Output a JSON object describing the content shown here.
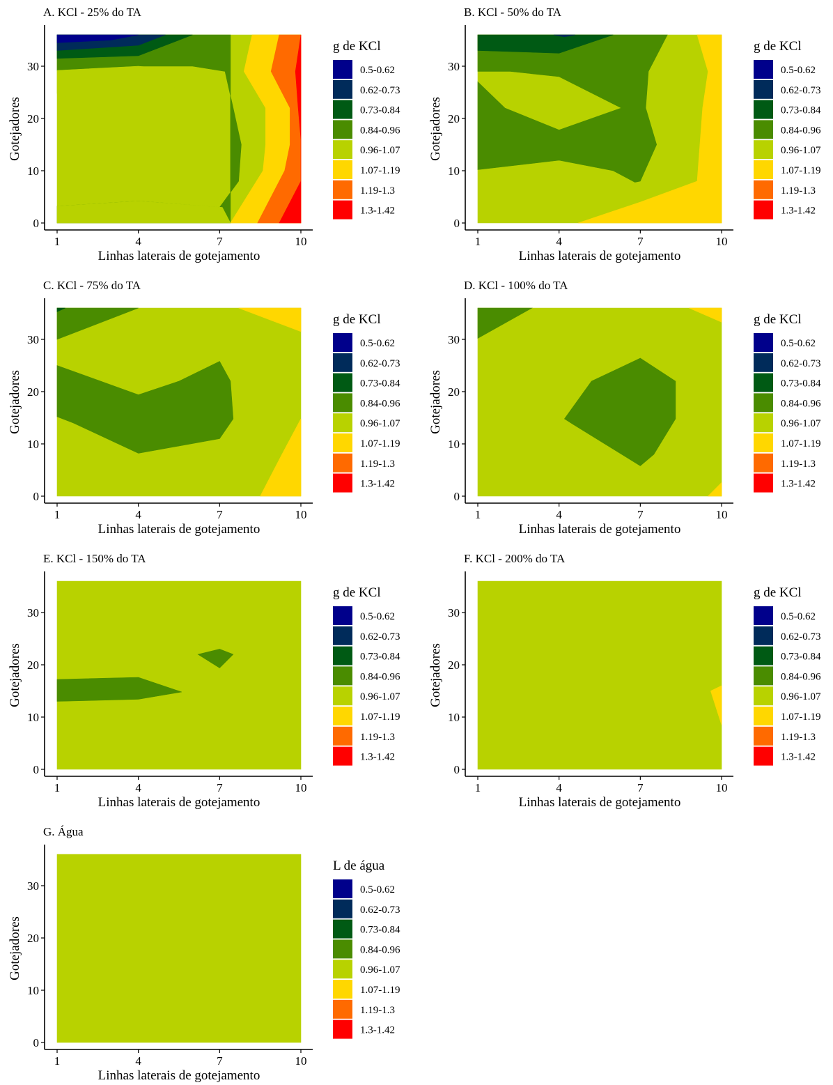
{
  "legend_palette": [
    "#00008B",
    "#002B5A",
    "#005A14",
    "#4A8C00",
    "#B8D200",
    "#FFD700",
    "#FF6A00",
    "#FF0000"
  ],
  "chart_data": [
    {
      "type": "heatmap",
      "title": "A.  KCl - 25% do TA",
      "xlabel": "Linhas laterais de gotejamento",
      "ylabel": "Gotejadores",
      "x_ticks": [
        "1",
        "4",
        "7",
        "10"
      ],
      "y_ticks": [
        "0",
        "10",
        "20",
        "30"
      ],
      "xlim": [
        1,
        10
      ],
      "ylim": [
        0,
        36
      ],
      "legend_title": "g de KCl",
      "legend_labels": [
        "0.5-0.62",
        "0.62-0.73",
        "0.73-0.84",
        "0.84-0.96",
        "0.96-1.07",
        "1.07-1.19",
        "1.19-1.3",
        "1.3-1.42"
      ],
      "regions": [
        {
          "level": 4,
          "points": [
            [
              1,
              0
            ],
            [
              10,
              0
            ],
            [
              10,
              36
            ],
            [
              1,
              36
            ]
          ]
        },
        {
          "level": 5,
          "points": [
            [
              7.4,
              0
            ],
            [
              10,
              0
            ],
            [
              10,
              36
            ],
            [
              8.2,
              36
            ],
            [
              7.9,
              29
            ],
            [
              8.7,
              22
            ],
            [
              8.7,
              15
            ],
            [
              8.6,
              10
            ]
          ]
        },
        {
          "level": 6,
          "points": [
            [
              8.4,
              0
            ],
            [
              10,
              0
            ],
            [
              10,
              36
            ],
            [
              9.2,
              36
            ],
            [
              8.9,
              29
            ],
            [
              9.6,
              22
            ],
            [
              9.6,
              15
            ],
            [
              9.4,
              10
            ]
          ]
        },
        {
          "level": 7,
          "points": [
            [
              9.2,
              0
            ],
            [
              10,
              0
            ],
            [
              10,
              36
            ],
            [
              10,
              36
            ],
            [
              9.8,
              29
            ],
            [
              9.9,
              22
            ],
            [
              10,
              16
            ],
            [
              10,
              8
            ]
          ]
        },
        {
          "level": 3,
          "points": [
            [
              1,
              3.2
            ],
            [
              4,
              4.2
            ],
            [
              7,
              3
            ],
            [
              7.7,
              8
            ],
            [
              7.8,
              15
            ],
            [
              7.5,
              22
            ],
            [
              7.2,
              29
            ],
            [
              6,
              30
            ],
            [
              4,
              30
            ],
            [
              1,
              29.2
            ],
            [
              1,
              36
            ],
            [
              7,
              36
            ],
            [
              7.4,
              36
            ],
            [
              7.4,
              0
            ],
            [
              1,
              0
            ]
          ]
        },
        {
          "level": 4,
          "points": [
            [
              1,
              0
            ],
            [
              7.4,
              0
            ],
            [
              7.1,
              3
            ],
            [
              4,
              4.2
            ],
            [
              1,
              3.2
            ]
          ]
        },
        {
          "level": 4,
          "points": [
            [
              1,
              29.2
            ],
            [
              4,
              30
            ],
            [
              6,
              29
            ],
            [
              4,
              20
            ],
            [
              2.5,
              22
            ],
            [
              1,
              24.8
            ]
          ]
        },
        {
          "level": 2,
          "points": [
            [
              1,
              31.5
            ],
            [
              4,
              32
            ],
            [
              6,
              36
            ],
            [
              1,
              36
            ]
          ]
        },
        {
          "level": 1,
          "points": [
            [
              1,
              33
            ],
            [
              4,
              34
            ],
            [
              5,
              36
            ],
            [
              1,
              36
            ]
          ]
        },
        {
          "level": 0,
          "points": [
            [
              1,
              34.5
            ],
            [
              3,
              35
            ],
            [
              4,
              36
            ],
            [
              1,
              36
            ]
          ]
        }
      ]
    },
    {
      "type": "heatmap",
      "title": "B.  KCl - 50% do TA",
      "xlabel": "Linhas laterais de gotejamento",
      "ylabel": "Gotejadores",
      "x_ticks": [
        "1",
        "4",
        "7",
        "10"
      ],
      "y_ticks": [
        "0",
        "10",
        "20",
        "30"
      ],
      "xlim": [
        1,
        10
      ],
      "ylim": [
        0,
        36
      ],
      "legend_title": "g de KCl",
      "legend_labels": [
        "0.5-0.62",
        "0.62-0.73",
        "0.73-0.84",
        "0.84-0.96",
        "0.96-1.07",
        "1.07-1.19",
        "1.19-1.3",
        "1.3-1.42"
      ],
      "regions": [
        {
          "level": 4,
          "points": [
            [
              1,
              0
            ],
            [
              10,
              0
            ],
            [
              10,
              36
            ],
            [
              1,
              36
            ]
          ]
        },
        {
          "level": 5,
          "points": [
            [
              4.7,
              0
            ],
            [
              10,
              0
            ],
            [
              10,
              36
            ],
            [
              9.1,
              36
            ],
            [
              9.5,
              29
            ],
            [
              9.3,
              22
            ],
            [
              9.2,
              15
            ],
            [
              9.1,
              8
            ],
            [
              7,
              4
            ]
          ]
        },
        {
          "level": 3,
          "points": [
            [
              1,
              10.2
            ],
            [
              4,
              12
            ],
            [
              6,
              10
            ],
            [
              6.8,
              7.8
            ],
            [
              7,
              8
            ],
            [
              7.6,
              15
            ],
            [
              7.2,
              22
            ],
            [
              7.3,
              29
            ],
            [
              8,
              36
            ],
            [
              1,
              36
            ],
            [
              1,
              29
            ],
            [
              2.2,
              29
            ],
            [
              4,
              28
            ],
            [
              6.3,
              22
            ],
            [
              4,
              17.8
            ],
            [
              2,
              22
            ],
            [
              1,
              27
            ]
          ]
        },
        {
          "level": 2,
          "points": [
            [
              1,
              33
            ],
            [
              4,
              32.5
            ],
            [
              6,
              36
            ],
            [
              1,
              36
            ]
          ]
        },
        {
          "level": 1,
          "points": [
            [
              3.8,
              36
            ],
            [
              4.2,
              35.6
            ],
            [
              4.6,
              36
            ]
          ]
        }
      ]
    },
    {
      "type": "heatmap",
      "title": "C.  KCl - 75% do TA",
      "xlabel": "Linhas laterais de gotejamento",
      "ylabel": "Gotejadores",
      "x_ticks": [
        "1",
        "4",
        "7",
        "10"
      ],
      "y_ticks": [
        "0",
        "10",
        "20",
        "30"
      ],
      "xlim": [
        1,
        10
      ],
      "ylim": [
        0,
        36
      ],
      "legend_title": "g de KCl",
      "legend_labels": [
        "0.5-0.62",
        "0.62-0.73",
        "0.73-0.84",
        "0.84-0.96",
        "0.96-1.07",
        "1.07-1.19",
        "1.19-1.3",
        "1.3-1.42"
      ],
      "regions": [
        {
          "level": 4,
          "points": [
            [
              1,
              0
            ],
            [
              10,
              0
            ],
            [
              10,
              36
            ],
            [
              1,
              36
            ]
          ]
        },
        {
          "level": 5,
          "points": [
            [
              8.5,
              0
            ],
            [
              10,
              0
            ],
            [
              10,
              14.8
            ],
            [
              9.3,
              8
            ],
            [
              8.8,
              3
            ]
          ]
        },
        {
          "level": 5,
          "points": [
            [
              7.7,
              36
            ],
            [
              10,
              36
            ],
            [
              10,
              31.5
            ]
          ]
        },
        {
          "level": 3,
          "points": [
            [
              1,
              15.2
            ],
            [
              1.6,
              14
            ],
            [
              4,
              8.2
            ],
            [
              7,
              11
            ],
            [
              7.5,
              14.8
            ],
            [
              7.4,
              22
            ],
            [
              7,
              25.8
            ],
            [
              5.5,
              22
            ],
            [
              4,
              19.4
            ],
            [
              1,
              25
            ]
          ]
        },
        {
          "level": 3,
          "points": [
            [
              1,
              30
            ],
            [
              4,
              36
            ],
            [
              1,
              36
            ]
          ]
        },
        {
          "level": 2,
          "points": [
            [
              1,
              35.3
            ],
            [
              1.3,
              36
            ],
            [
              1,
              36
            ]
          ]
        }
      ]
    },
    {
      "type": "heatmap",
      "title": "D.  KCl - 100% do TA",
      "xlabel": "Linhas laterais de gotejamento",
      "ylabel": "Gotejadores",
      "x_ticks": [
        "1",
        "4",
        "7",
        "10"
      ],
      "y_ticks": [
        "0",
        "10",
        "20",
        "30"
      ],
      "xlim": [
        1,
        10
      ],
      "ylim": [
        0,
        36
      ],
      "legend_title": "g de KCl",
      "legend_labels": [
        "0.5-0.62",
        "0.62-0.73",
        "0.73-0.84",
        "0.84-0.96",
        "0.96-1.07",
        "1.07-1.19",
        "1.19-1.3",
        "1.3-1.42"
      ],
      "regions": [
        {
          "level": 4,
          "points": [
            [
              1,
              0
            ],
            [
              10,
              0
            ],
            [
              10,
              36
            ],
            [
              1,
              36
            ]
          ]
        },
        {
          "level": 5,
          "points": [
            [
              8.8,
              36
            ],
            [
              10,
              36
            ],
            [
              10,
              33.3
            ]
          ]
        },
        {
          "level": 5,
          "points": [
            [
              9.5,
              0
            ],
            [
              10,
              0
            ],
            [
              10,
              2.6
            ]
          ]
        },
        {
          "level": 3,
          "points": [
            [
              4.2,
              14.8
            ],
            [
              4.5,
              13.8
            ],
            [
              7,
              5.8
            ],
            [
              7.5,
              8
            ],
            [
              8.3,
              14.8
            ],
            [
              8.3,
              22
            ],
            [
              7,
              26.4
            ],
            [
              5.2,
              22
            ]
          ]
        },
        {
          "level": 3,
          "points": [
            [
              1,
              30.2
            ],
            [
              3,
              36
            ],
            [
              1,
              36
            ]
          ]
        }
      ]
    },
    {
      "type": "heatmap",
      "title": "E.  KCl - 150% do TA",
      "xlabel": "Linhas laterais de gotejamento",
      "ylabel": "Gotejadores",
      "x_ticks": [
        "1",
        "4",
        "7",
        "10"
      ],
      "y_ticks": [
        "0",
        "10",
        "20",
        "30"
      ],
      "xlim": [
        1,
        10
      ],
      "ylim": [
        0,
        36
      ],
      "legend_title": "g de KCl",
      "legend_labels": [
        "0.5-0.62",
        "0.62-0.73",
        "0.73-0.84",
        "0.84-0.96",
        "0.96-1.07",
        "1.07-1.19",
        "1.19-1.3",
        "1.3-1.42"
      ],
      "regions": [
        {
          "level": 4,
          "points": [
            [
              1,
              0
            ],
            [
              10,
              0
            ],
            [
              10,
              36
            ],
            [
              1,
              36
            ]
          ]
        },
        {
          "level": 3,
          "points": [
            [
              1,
              13
            ],
            [
              4,
              13.4
            ],
            [
              5.6,
              14.8
            ],
            [
              4,
              17.6
            ],
            [
              1,
              17.2
            ]
          ]
        },
        {
          "level": 3,
          "points": [
            [
              6.2,
              22
            ],
            [
              7,
              23
            ],
            [
              7.5,
              22
            ],
            [
              7,
              19.4
            ]
          ]
        }
      ]
    },
    {
      "type": "heatmap",
      "title": "F.  KCl - 200% do TA",
      "xlabel": "Linhas laterais de gotejamento",
      "ylabel": "Gotejadores",
      "x_ticks": [
        "1",
        "4",
        "7",
        "10"
      ],
      "y_ticks": [
        "0",
        "10",
        "20",
        "30"
      ],
      "xlim": [
        1,
        10
      ],
      "ylim": [
        0,
        36
      ],
      "legend_title": "g de KCl",
      "legend_labels": [
        "0.5-0.62",
        "0.62-0.73",
        "0.73-0.84",
        "0.84-0.96",
        "0.96-1.07",
        "1.07-1.19",
        "1.19-1.3",
        "1.3-1.42"
      ],
      "regions": [
        {
          "level": 4,
          "points": [
            [
              1,
              0
            ],
            [
              10,
              0
            ],
            [
              10,
              36
            ],
            [
              1,
              36
            ]
          ]
        },
        {
          "level": 5,
          "points": [
            [
              9.6,
              15
            ],
            [
              10,
              16
            ],
            [
              10,
              8.5
            ]
          ]
        }
      ]
    },
    {
      "type": "heatmap",
      "title": "G.  Água",
      "xlabel": "Linhas laterais de gotejamento",
      "ylabel": "Gotejadores",
      "x_ticks": [
        "1",
        "4",
        "7",
        "10"
      ],
      "y_ticks": [
        "0",
        "10",
        "20",
        "30"
      ],
      "xlim": [
        1,
        10
      ],
      "ylim": [
        0,
        36
      ],
      "legend_title": "L de água",
      "legend_labels": [
        "0.5-0.62",
        "0.62-0.73",
        "0.73-0.84",
        "0.84-0.96",
        "0.96-1.07",
        "1.07-1.19",
        "1.19-1.3",
        "1.3-1.42"
      ],
      "regions": [
        {
          "level": 4,
          "points": [
            [
              1,
              0
            ],
            [
              10,
              0
            ],
            [
              10,
              36
            ],
            [
              1,
              36
            ]
          ]
        }
      ]
    }
  ]
}
